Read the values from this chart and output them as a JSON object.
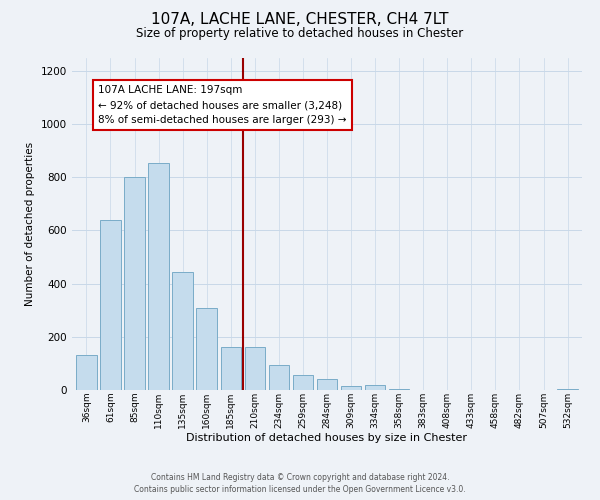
{
  "title": "107A, LACHE LANE, CHESTER, CH4 7LT",
  "subtitle": "Size of property relative to detached houses in Chester",
  "xlabel": "Distribution of detached houses by size in Chester",
  "ylabel": "Number of detached properties",
  "bar_labels": [
    "36sqm",
    "61sqm",
    "85sqm",
    "110sqm",
    "135sqm",
    "160sqm",
    "185sqm",
    "210sqm",
    "234sqm",
    "259sqm",
    "284sqm",
    "309sqm",
    "334sqm",
    "358sqm",
    "383sqm",
    "408sqm",
    "433sqm",
    "458sqm",
    "482sqm",
    "507sqm",
    "532sqm"
  ],
  "bar_values": [
    130,
    640,
    800,
    855,
    445,
    310,
    160,
    160,
    95,
    55,
    40,
    15,
    20,
    5,
    0,
    0,
    0,
    0,
    0,
    0,
    5
  ],
  "bar_color": "#c5dced",
  "bar_edge_color": "#7aacc8",
  "vline_color": "#990000",
  "annotation_title": "107A LACHE LANE: 197sqm",
  "annotation_line1": "← 92% of detached houses are smaller (3,248)",
  "annotation_line2": "8% of semi-detached houses are larger (293) →",
  "annotation_box_facecolor": "#ffffff",
  "annotation_box_edgecolor": "#cc0000",
  "ylim": [
    0,
    1250
  ],
  "yticks": [
    0,
    200,
    400,
    600,
    800,
    1000,
    1200
  ],
  "footer1": "Contains HM Land Registry data © Crown copyright and database right 2024.",
  "footer2": "Contains public sector information licensed under the Open Government Licence v3.0.",
  "background_color": "#eef2f7",
  "grid_color": "#c8d8e8"
}
